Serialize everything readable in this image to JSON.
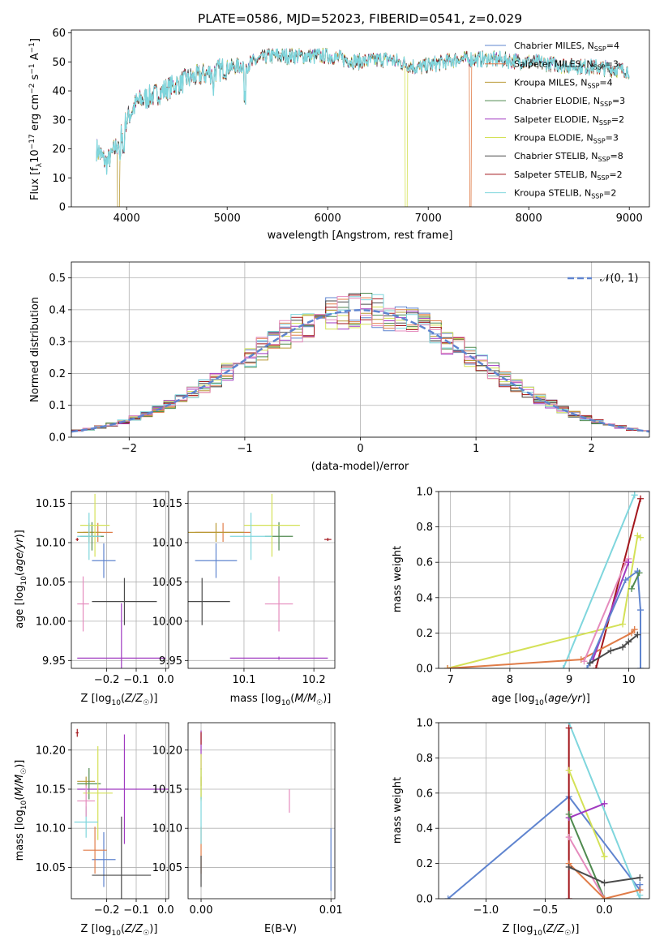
{
  "chart_data": [
    {
      "type": "line",
      "title": "PLATE=0586, MJD=52023, FIBERID=0541, z=0.029",
      "xlabel": "wavelength [Angstrom, rest frame]",
      "ylabel_parts": [
        "Flux [f",
        "λ",
        "10",
        "−17",
        " erg cm",
        "−2",
        " s",
        "−1",
        " A",
        "−1",
        "]"
      ],
      "xlim": [
        3450,
        9200
      ],
      "ylim": [
        0,
        61
      ],
      "x_ticks": [
        4000,
        5000,
        6000,
        7000,
        8000,
        9000
      ],
      "y_ticks": [
        0,
        10,
        20,
        30,
        40,
        50,
        60
      ],
      "grid": false,
      "legend_placement": "top-right",
      "continuum": [
        [
          3700,
          20
        ],
        [
          3800,
          15
        ],
        [
          3900,
          21
        ],
        [
          4000,
          30
        ],
        [
          4100,
          36
        ],
        [
          4300,
          39
        ],
        [
          4600,
          44
        ],
        [
          5000,
          48
        ],
        [
          5200,
          49
        ],
        [
          5400,
          52
        ],
        [
          5700,
          52
        ],
        [
          6000,
          52
        ],
        [
          6300,
          50
        ],
        [
          6600,
          51
        ],
        [
          6900,
          48
        ],
        [
          7300,
          51
        ],
        [
          7600,
          51
        ],
        [
          8000,
          50
        ],
        [
          8300,
          49
        ],
        [
          8700,
          48
        ],
        [
          9000,
          47
        ]
      ],
      "series": [
        {
          "name_prefix": "Chabrier MILES, N",
          "n": "4",
          "color": "#5f84cf"
        },
        {
          "name_prefix": "Salpeter MILES, N",
          "n": "3",
          "color": "#e07c48"
        },
        {
          "name_prefix": "Kroupa MILES, N",
          "n": "4",
          "color": "#b99a36"
        },
        {
          "name_prefix": "Chabrier ELODIE, N",
          "n": "3",
          "color": "#4f8a4f"
        },
        {
          "name_prefix": "Salpeter ELODIE, N",
          "n": "2",
          "color": "#a03ac0"
        },
        {
          "name_prefix": "Kroupa ELODIE, N",
          "n": "3",
          "color": "#d4e157"
        },
        {
          "name_prefix": "Chabrier STELIB, N",
          "n": "8",
          "color": "#4a4a4a"
        },
        {
          "name_prefix": "Salpeter STELIB, N",
          "n": "2",
          "color": "#a3161c"
        },
        {
          "name_prefix": "Kroupa STELIB, N",
          "n": "2",
          "color": "#7fd6dd"
        }
      ],
      "legend_sub": "SSP",
      "dropouts": [
        {
          "color": "#b99a36",
          "x": 3920
        },
        {
          "color": "#d4e157",
          "x": 6780
        },
        {
          "color": "#e07c48",
          "x": 7420
        }
      ]
    },
    {
      "type": "histogram",
      "xlabel": "(data-model)/error",
      "ylabel": "Normed distribution",
      "xlim": [
        -2.5,
        2.5
      ],
      "ylim": [
        0,
        0.55
      ],
      "x_ticks": [
        -2,
        -1,
        0,
        1,
        2
      ],
      "x_tick_labels": [
        "−2",
        "−1",
        "0",
        "1",
        "2"
      ],
      "y_ticks": [
        0,
        0.1,
        0.2,
        0.3,
        0.4,
        0.5
      ],
      "y_tick_labels": [
        "0.0",
        "0.1",
        "0.2",
        "0.3",
        "0.4",
        "0.5"
      ],
      "grid": true,
      "bin_width": 0.1,
      "reference_curve": {
        "label": "𝒩(0, 1)",
        "color": "#5f84cf"
      },
      "legend_placement": "top-right"
    },
    {
      "type": "scatter",
      "xlabel": "Z [log10(Z/Z☉)]",
      "ylabel": "age  [log10(age/yr)]",
      "xlim": [
        -0.32,
        0.01
      ],
      "ylim": [
        9.94,
        10.165
      ],
      "x_ticks": [
        -0.2,
        -0.1,
        0.0
      ],
      "x_tick_labels": [
        "−0.2",
        "−0.1",
        "0.0"
      ],
      "y_ticks": [
        9.95,
        10.0,
        10.05,
        10.1,
        10.15
      ],
      "y_tick_labels": [
        "9.95",
        "10.00",
        "10.05",
        "10.10",
        "10.15"
      ],
      "points": [
        {
          "color": "#5f84cf",
          "x": -0.21,
          "y": 10.077,
          "xerr": 0.04,
          "yerr": 0.022
        },
        {
          "color": "#e07c48",
          "x": -0.23,
          "y": 10.113,
          "xerr": 0.05,
          "yerr": 0.012
        },
        {
          "color": "#b99a36",
          "x": -0.26,
          "y": 10.113,
          "xerr": 0.04,
          "yerr": 0.012
        },
        {
          "color": "#4f8a4f",
          "x": -0.25,
          "y": 10.108,
          "xerr": 0.04,
          "yerr": 0.018
        },
        {
          "color": "#a03ac0",
          "x": -0.15,
          "y": 9.953,
          "xerr": 0.15,
          "yerr": 0.07
        },
        {
          "color": "#d4e157",
          "x": -0.24,
          "y": 10.122,
          "xerr": 0.05,
          "yerr": 0.04
        },
        {
          "color": "#4a4a4a",
          "x": -0.14,
          "y": 10.025,
          "xerr": 0.11,
          "yerr": 0.03
        },
        {
          "color": "#a3161c",
          "x": -0.3,
          "y": 10.104,
          "xerr": 0.005,
          "yerr": 0.002
        },
        {
          "color": "#7fd6dd",
          "x": -0.26,
          "y": 10.108,
          "xerr": 0.04,
          "yerr": 0.03
        },
        {
          "color": "#e58bbd",
          "x": -0.28,
          "y": 10.022,
          "xerr": 0.02,
          "yerr": 0.035
        }
      ]
    },
    {
      "type": "scatter",
      "xlabel": "mass [log10(M/M☉)]",
      "xlim": [
        10.02,
        10.23
      ],
      "ylim": [
        9.94,
        10.165
      ],
      "x_ticks": [
        10.1,
        10.2
      ],
      "x_tick_labels": [
        "10.1",
        "10.2"
      ],
      "y_ticks": [
        9.95,
        10.0,
        10.05,
        10.1,
        10.15
      ],
      "y_tick_labels": [
        "9.95",
        "10.00",
        "10.05",
        "10.10",
        "10.15"
      ],
      "points": [
        {
          "color": "#5f84cf",
          "x": 10.06,
          "y": 10.077,
          "xerr": 0.03,
          "yerr": 0.022
        },
        {
          "color": "#e07c48",
          "x": 10.07,
          "y": 10.113,
          "xerr": 0.04,
          "yerr": 0.012
        },
        {
          "color": "#b99a36",
          "x": 10.06,
          "y": 10.113,
          "xerr": 0.04,
          "yerr": 0.012
        },
        {
          "color": "#4f8a4f",
          "x": 10.15,
          "y": 10.108,
          "xerr": 0.02,
          "yerr": 0.018
        },
        {
          "color": "#a03ac0",
          "x": 10.15,
          "y": 9.953,
          "xerr": 0.07,
          "yerr": 0.002
        },
        {
          "color": "#d4e157",
          "x": 10.14,
          "y": 10.122,
          "xerr": 0.04,
          "yerr": 0.04
        },
        {
          "color": "#4a4a4a",
          "x": 10.04,
          "y": 10.025,
          "xerr": 0.04,
          "yerr": 0.03
        },
        {
          "color": "#a3161c",
          "x": 10.22,
          "y": 10.104,
          "xerr": 0.005,
          "yerr": 0.002
        },
        {
          "color": "#7fd6dd",
          "x": 10.11,
          "y": 10.108,
          "xerr": 0.03,
          "yerr": 0.03
        },
        {
          "color": "#e58bbd",
          "x": 10.15,
          "y": 10.022,
          "xerr": 0.02,
          "yerr": 0.035
        }
      ]
    },
    {
      "type": "line",
      "xlabel": "age  [log10(age/yr)]",
      "ylabel": "mass weight",
      "xlim": [
        6.8,
        10.35
      ],
      "ylim": [
        0,
        1
      ],
      "x_ticks": [
        7,
        8,
        9,
        10
      ],
      "x_tick_labels": [
        "7",
        "8",
        "9",
        "10"
      ],
      "y_ticks": [
        0,
        0.2,
        0.4,
        0.6,
        0.8,
        1.0
      ],
      "y_tick_labels": [
        "0.0",
        "0.2",
        "0.4",
        "0.6",
        "0.8",
        "1.0"
      ],
      "grid": true,
      "series": [
        {
          "color": "#7fd6dd",
          "x": [
            8.9,
            10.1,
            10.1
          ],
          "y": [
            0.0,
            0.98,
            0.98
          ]
        },
        {
          "color": "#a3161c",
          "x": [
            9.45,
            10.2
          ],
          "y": [
            0.0,
            0.96
          ]
        },
        {
          "color": "#d4e157",
          "x": [
            6.95,
            9.9,
            10.15,
            10.2
          ],
          "y": [
            0.0,
            0.25,
            0.75,
            0.74
          ]
        },
        {
          "color": "#e07c48",
          "x": [
            6.95,
            9.2,
            10.05,
            10.1
          ],
          "y": [
            0.0,
            0.05,
            0.2,
            0.22
          ]
        },
        {
          "color": "#e58bbd",
          "x": [
            9.25,
            9.95,
            10.0
          ],
          "y": [
            0.04,
            0.6,
            0.62
          ]
        },
        {
          "color": "#a03ac0",
          "x": [
            9.4,
            10.0
          ],
          "y": [
            0.05,
            0.6
          ]
        },
        {
          "color": "#5f84cf",
          "x": [
            9.3,
            9.95,
            10.15,
            10.2,
            10.2
          ],
          "y": [
            0.0,
            0.5,
            0.55,
            0.33,
            0.0
          ]
        },
        {
          "color": "#4f8a4f",
          "x": [
            10.05,
            10.18
          ],
          "y": [
            0.45,
            0.54
          ]
        },
        {
          "color": "#4a4a4a",
          "x": [
            9.35,
            9.7,
            9.9,
            10.0,
            10.15
          ],
          "y": [
            0.03,
            0.1,
            0.12,
            0.15,
            0.19
          ]
        }
      ]
    },
    {
      "type": "scatter",
      "xlabel": "Z [log10(Z/Z☉)]",
      "ylabel": "mass [log10(M/M☉)]",
      "xlim": [
        -0.32,
        0.01
      ],
      "ylim": [
        10.01,
        10.235
      ],
      "x_ticks": [
        -0.2,
        -0.1,
        0.0
      ],
      "x_tick_labels": [
        "−0.2",
        "−0.1",
        "0.0"
      ],
      "y_ticks": [
        10.05,
        10.1,
        10.15,
        10.2
      ],
      "y_tick_labels": [
        "10.05",
        "10.10",
        "10.15",
        "10.20"
      ],
      "points": [
        {
          "color": "#5f84cf",
          "x": -0.21,
          "y": 10.06,
          "xerr": 0.04,
          "yerr": 0.035
        },
        {
          "color": "#e07c48",
          "x": -0.24,
          "y": 10.072,
          "xerr": 0.04,
          "yerr": 0.03
        },
        {
          "color": "#b99a36",
          "x": -0.27,
          "y": 10.16,
          "xerr": 0.03,
          "yerr": 0.006
        },
        {
          "color": "#4f8a4f",
          "x": -0.26,
          "y": 10.157,
          "xerr": 0.04,
          "yerr": 0.02
        },
        {
          "color": "#a03ac0",
          "x": -0.14,
          "y": 10.15,
          "xerr": 0.16,
          "yerr": 0.07
        },
        {
          "color": "#d4e157",
          "x": -0.23,
          "y": 10.145,
          "xerr": 0.05,
          "yerr": 0.06
        },
        {
          "color": "#4a4a4a",
          "x": -0.15,
          "y": 10.04,
          "xerr": 0.1,
          "yerr": 0.075
        },
        {
          "color": "#a3161c",
          "x": -0.3,
          "y": 10.222,
          "xerr": 0.005,
          "yerr": 0.005
        },
        {
          "color": "#7fd6dd",
          "x": -0.27,
          "y": 10.108,
          "xerr": 0.04,
          "yerr": 0.02
        },
        {
          "color": "#e58bbd",
          "x": -0.27,
          "y": 10.135,
          "xerr": 0.03,
          "yerr": 0.02
        }
      ]
    },
    {
      "type": "scatter",
      "xlabel": "E(B-V)",
      "xlim": [
        -0.001,
        0.0103
      ],
      "ylim": [
        10.01,
        10.235
      ],
      "x_ticks": [
        0.0,
        0.01
      ],
      "x_tick_labels": [
        "0.00",
        "0.01"
      ],
      "y_ticks": [
        10.05,
        10.1,
        10.15,
        10.2
      ],
      "y_tick_labels": [
        "10.05",
        "10.10",
        "10.15",
        "10.20"
      ],
      "points": [
        {
          "color": "#5f84cf",
          "x": 0.01,
          "y": 10.06,
          "xerr": 0.0,
          "yerr": 0.04
        },
        {
          "color": "#e07c48",
          "x": 0.0,
          "y": 10.072,
          "xerr": 0.0,
          "yerr": 0.03
        },
        {
          "color": "#b99a36",
          "x": 0.0,
          "y": 10.16,
          "xerr": 0.0,
          "yerr": 0.006
        },
        {
          "color": "#4f8a4f",
          "x": 0.0,
          "y": 10.157,
          "xerr": 0.0,
          "yerr": 0.02
        },
        {
          "color": "#a03ac0",
          "x": 0.0,
          "y": 10.2,
          "xerr": 0.0,
          "yerr": 0.025
        },
        {
          "color": "#d4e157",
          "x": 0.0,
          "y": 10.165,
          "xerr": 0.0,
          "yerr": 0.03
        },
        {
          "color": "#4a4a4a",
          "x": 0.0,
          "y": 10.045,
          "xerr": 0.0,
          "yerr": 0.02
        },
        {
          "color": "#a3161c",
          "x": 0.0,
          "y": 10.215,
          "xerr": 0.0,
          "yerr": 0.008
        },
        {
          "color": "#7fd6dd",
          "x": 0.0,
          "y": 10.11,
          "xerr": 0.0,
          "yerr": 0.03
        },
        {
          "color": "#e58bbd",
          "x": 0.0068,
          "y": 10.135,
          "xerr": 0.0,
          "yerr": 0.015
        }
      ]
    },
    {
      "type": "line",
      "xlabel": "Z [log10(Z/Z☉)]",
      "ylabel": "mass weight",
      "xlim": [
        -1.4,
        0.38
      ],
      "ylim": [
        0,
        1
      ],
      "x_ticks": [
        -1.0,
        -0.5,
        0.0
      ],
      "x_tick_labels": [
        "−1.0",
        "−0.5",
        "0.0"
      ],
      "y_ticks": [
        0,
        0.2,
        0.4,
        0.6,
        0.8,
        1.0
      ],
      "y_tick_labels": [
        "0.0",
        "0.2",
        "0.4",
        "0.6",
        "0.8",
        "1.0"
      ],
      "grid": true,
      "series": [
        {
          "color": "#5f84cf",
          "x": [
            -1.32,
            -0.3,
            0.3,
            0.3
          ],
          "y": [
            0.0,
            0.58,
            0.05,
            0.08
          ]
        },
        {
          "color": "#7fd6dd",
          "x": [
            -0.3,
            0.3,
            0.3
          ],
          "y": [
            1.0,
            0.0,
            0.02
          ]
        },
        {
          "color": "#a3161c",
          "x": [
            -0.3,
            -0.3
          ],
          "y": [
            0.97,
            0.0
          ]
        },
        {
          "color": "#d4e157",
          "x": [
            -0.3,
            0.0,
            0.0
          ],
          "y": [
            0.73,
            0.24,
            0.24
          ]
        },
        {
          "color": "#a03ac0",
          "x": [
            -0.3,
            0.0
          ],
          "y": [
            0.46,
            0.54
          ]
        },
        {
          "color": "#4f8a4f",
          "x": [
            -0.3,
            0.0
          ],
          "y": [
            0.48,
            0.0
          ]
        },
        {
          "color": "#e58bbd",
          "x": [
            -0.3,
            0.0
          ],
          "y": [
            0.35,
            0.0
          ]
        },
        {
          "color": "#e07c48",
          "x": [
            -0.3,
            0.0,
            0.3
          ],
          "y": [
            0.2,
            0.0,
            0.05
          ]
        },
        {
          "color": "#4a4a4a",
          "x": [
            -0.3,
            0.0,
            0.3
          ],
          "y": [
            0.18,
            0.09,
            0.12
          ]
        }
      ]
    }
  ]
}
